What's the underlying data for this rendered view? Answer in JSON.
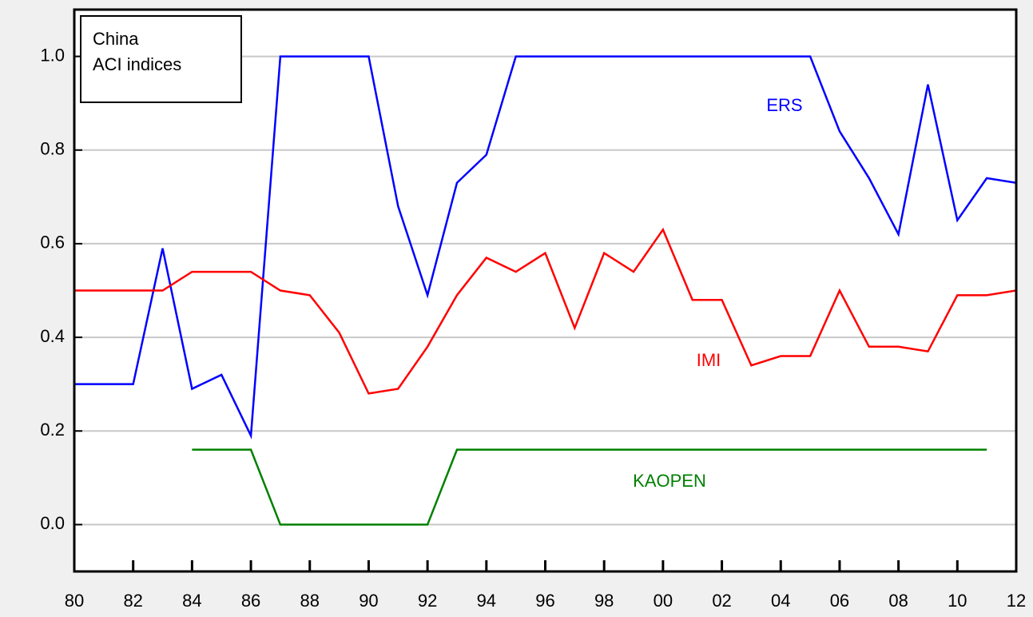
{
  "chart_data": {
    "type": "line",
    "annotations": [
      "China",
      "ACI indices"
    ],
    "x": [
      1980,
      1981,
      1982,
      1983,
      1984,
      1985,
      1986,
      1987,
      1988,
      1989,
      1990,
      1991,
      1992,
      1993,
      1994,
      1995,
      1996,
      1997,
      1998,
      1999,
      2000,
      2001,
      2002,
      2003,
      2004,
      2005,
      2006,
      2007,
      2008,
      2009,
      2010,
      2011,
      2012
    ],
    "series": [
      {
        "name": "ERS",
        "color": "#0000ff",
        "values": [
          0.3,
          0.3,
          0.3,
          0.59,
          0.29,
          0.32,
          0.19,
          1.0,
          1.0,
          1.0,
          1.0,
          0.68,
          0.49,
          0.73,
          0.79,
          1.0,
          1.0,
          1.0,
          1.0,
          1.0,
          1.0,
          1.0,
          1.0,
          1.0,
          1.0,
          1.0,
          0.84,
          0.74,
          0.62,
          0.94,
          0.65,
          0.74,
          0.73
        ]
      },
      {
        "name": "IMI",
        "color": "#ff0000",
        "values": [
          0.5,
          0.5,
          0.5,
          0.5,
          0.54,
          0.54,
          0.54,
          0.5,
          0.49,
          0.41,
          0.28,
          0.29,
          0.38,
          0.49,
          0.57,
          0.54,
          0.58,
          0.42,
          0.58,
          0.54,
          0.63,
          0.48,
          0.48,
          0.34,
          0.36,
          0.36,
          0.5,
          0.38,
          0.38,
          0.37,
          0.49,
          0.49,
          0.5
        ]
      },
      {
        "name": "KAOPEN",
        "color": "#008000",
        "values": [
          null,
          null,
          null,
          null,
          0.16,
          0.16,
          0.16,
          0,
          0,
          0,
          0,
          0,
          0,
          0.16,
          0.16,
          0.16,
          0.16,
          0.16,
          0.16,
          0.16,
          0.16,
          0.16,
          0.16,
          0.16,
          0.16,
          0.16,
          0.16,
          0.16,
          0.16,
          0.16,
          0.16,
          0.16,
          null
        ]
      }
    ],
    "xlim": [
      1980,
      2012
    ],
    "xticks": [
      {
        "value": 1980,
        "label": "80"
      },
      {
        "value": 1982,
        "label": "82"
      },
      {
        "value": 1984,
        "label": "84"
      },
      {
        "value": 1986,
        "label": "86"
      },
      {
        "value": 1988,
        "label": "88"
      },
      {
        "value": 1990,
        "label": "90"
      },
      {
        "value": 1992,
        "label": "92"
      },
      {
        "value": 1994,
        "label": "94"
      },
      {
        "value": 1996,
        "label": "96"
      },
      {
        "value": 1998,
        "label": "98"
      },
      {
        "value": 2000,
        "label": "00"
      },
      {
        "value": 2002,
        "label": "02"
      },
      {
        "value": 2004,
        "label": "04"
      },
      {
        "value": 2006,
        "label": "06"
      },
      {
        "value": 2008,
        "label": "08"
      },
      {
        "value": 2010,
        "label": "10"
      },
      {
        "value": 2012,
        "label": "12"
      }
    ],
    "ylim": [
      -0.1,
      1.1
    ],
    "yticks": [
      {
        "value": 0,
        "label": "0.0"
      },
      0.2,
      0.4,
      0.6,
      0.8,
      {
        "value": 1,
        "label": "1.0"
      }
    ],
    "grid": true
  }
}
